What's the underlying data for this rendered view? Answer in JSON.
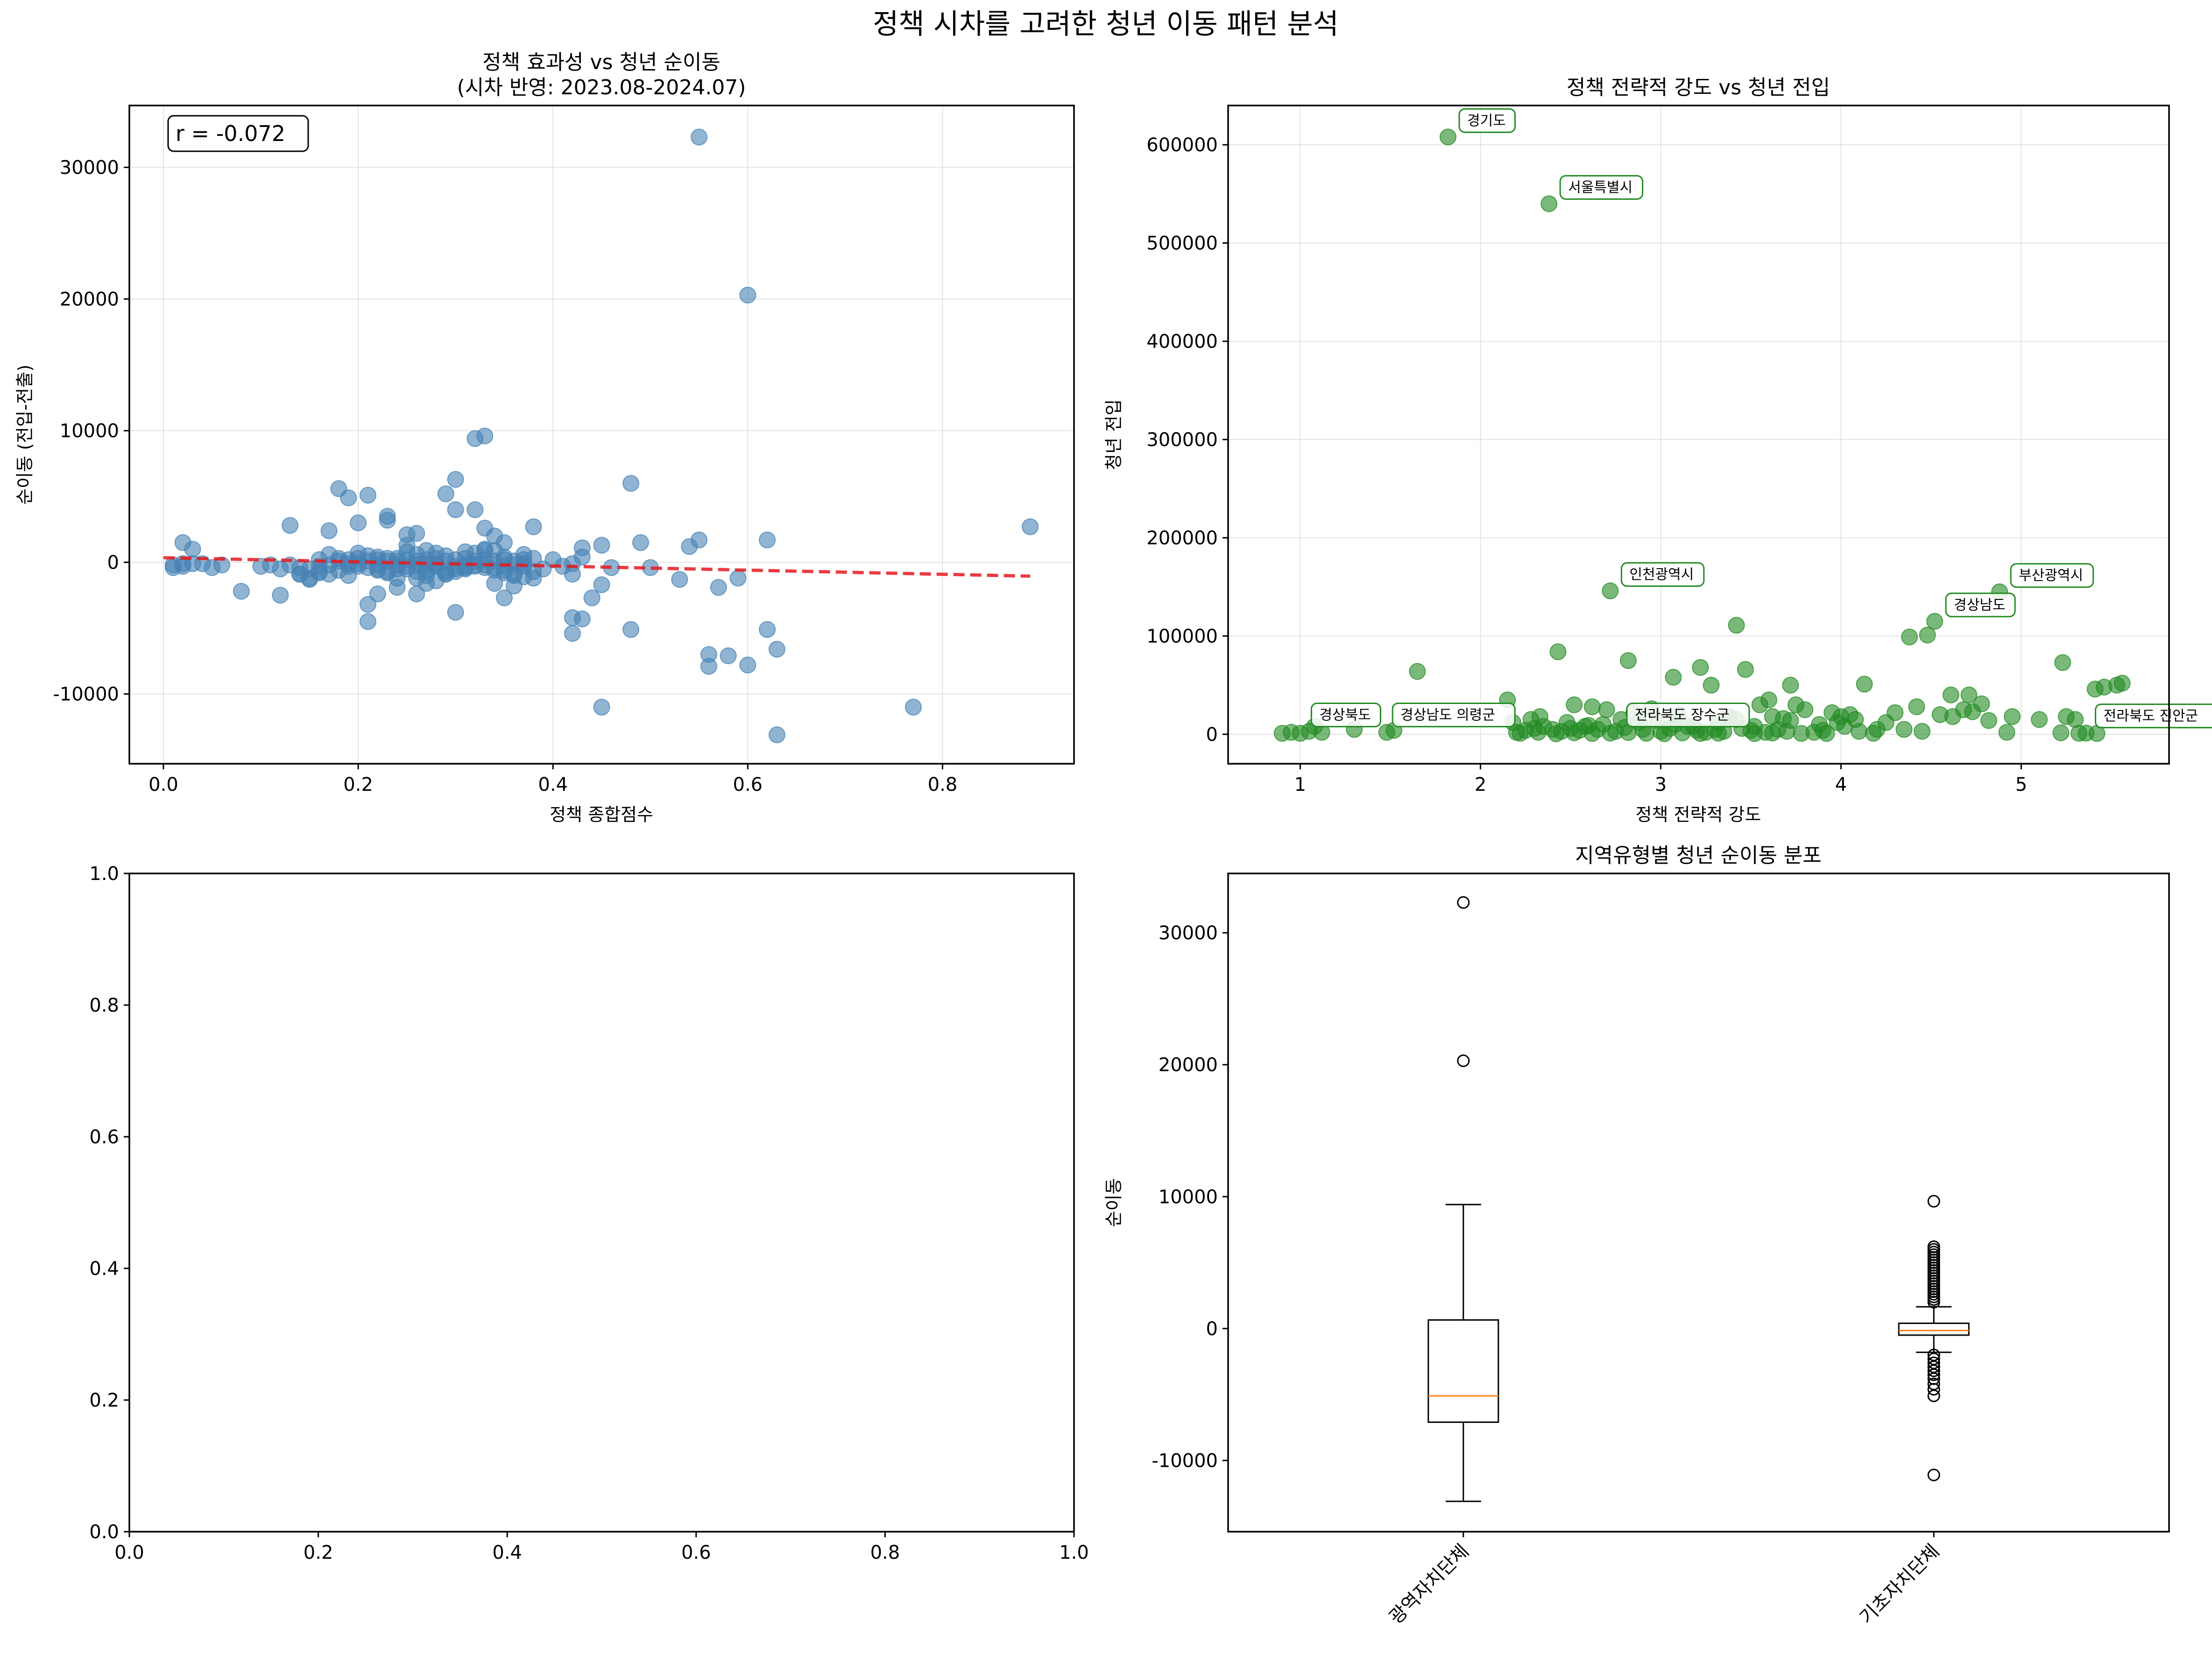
{
  "figure": {
    "title": "정책 시차를 고려한 청년 이동 패턴 분석"
  },
  "colors": {
    "scatter1": "#4682B4",
    "trend": "#E8191E",
    "scatter2": "#228B22",
    "annotation_edge": "#228B22",
    "median": "#FF7F0E"
  },
  "chart_data": [
    {
      "id": "ax1",
      "type": "scatter",
      "title_lines": [
        "정책 효과성 vs 청년 순이동",
        "(시차 반영: 2023.08-2024.07)"
      ],
      "xlabel": "정책 종합점수",
      "ylabel": "순이동 (전입-전출)",
      "xlim": [
        -0.035,
        0.935
      ],
      "ylim": [
        -15300,
        34700
      ],
      "xticks": [
        0.0,
        0.2,
        0.4,
        0.6,
        0.8
      ],
      "xtick_labels": [
        "0.0",
        "0.2",
        "0.4",
        "0.6",
        "0.8"
      ],
      "yticks": [
        -10000,
        0,
        10000,
        20000,
        30000
      ],
      "ytick_labels": [
        "-10000",
        "0",
        "10000",
        "20000",
        "30000"
      ],
      "grid": true,
      "annotation": "r = -0.072",
      "trend_line": {
        "x": [
          0.0,
          0.89
        ],
        "y": [
          350,
          -1050
        ]
      },
      "series": [
        {
          "x": [
            0.55,
            0.6,
            0.89,
            0.33,
            0.32,
            0.3,
            0.48,
            0.29,
            0.18,
            0.19,
            0.21,
            0.23,
            0.13,
            0.17,
            0.32,
            0.3,
            0.23,
            0.26,
            0.2,
            0.38,
            0.25,
            0.34,
            0.33,
            0.35,
            0.49,
            0.62,
            0.02,
            0.03,
            0.21,
            0.42,
            0.44,
            0.43,
            0.54,
            0.55,
            0.57,
            0.59,
            0.45,
            0.45,
            0.46,
            0.5,
            0.53,
            0.04,
            0.05,
            0.06,
            0.08,
            0.12,
            0.13,
            0.14,
            0.15,
            0.16,
            0.17,
            0.19,
            0.22,
            0.24,
            0.26,
            0.27,
            0.28,
            0.31,
            0.36,
            0.37,
            0.39,
            0.4,
            0.41,
            0.42,
            0.43,
            0.21,
            0.22,
            0.23,
            0.24,
            0.15,
            0.14,
            0.28,
            0.3,
            0.34,
            0.35,
            0.36,
            0.38,
            0.42,
            0.48,
            0.43,
            0.42,
            0.56,
            0.56,
            0.58,
            0.6,
            0.62,
            0.63,
            0.63,
            0.45,
            0.77,
            0.01,
            0.02,
            0.03,
            0.01,
            0.02,
            0.1,
            0.11,
            0.12,
            0.14,
            0.16,
            0.18,
            0.19,
            0.2,
            0.22,
            0.24,
            0.25,
            0.26,
            0.27,
            0.29,
            0.3,
            0.31,
            0.32,
            0.33,
            0.34,
            0.35,
            0.36,
            0.37,
            0.25,
            0.26,
            0.27,
            0.28,
            0.29,
            0.33,
            0.34,
            0.35,
            0.16,
            0.17,
            0.18,
            0.2,
            0.21,
            0.22,
            0.23,
            0.24,
            0.25,
            0.31,
            0.32,
            0.33,
            0.37,
            0.38,
            0.19,
            0.2,
            0.21,
            0.22,
            0.23,
            0.24,
            0.25,
            0.26,
            0.27,
            0.28,
            0.29,
            0.3,
            0.31,
            0.32,
            0.33,
            0.34,
            0.35,
            0.36,
            0.37,
            0.38,
            0.18,
            0.19,
            0.2,
            0.21,
            0.22,
            0.23,
            0.24,
            0.25,
            0.26,
            0.27,
            0.28,
            0.29,
            0.3,
            0.31,
            0.32,
            0.33,
            0.34,
            0.35,
            0.36,
            0.37,
            0.28,
            0.29,
            0.3,
            0.27,
            0.15,
            0.16,
            0.17,
            0.26,
            0.27,
            0.31,
            0.35
          ],
          "y": [
            32300,
            20300,
            2700,
            9600,
            9400,
            6300,
            6000,
            5200,
            5600,
            4900,
            5100,
            3500,
            2800,
            2400,
            4000,
            4000,
            3200,
            2200,
            3000,
            2700,
            2100,
            2000,
            2600,
            1500,
            1500,
            1700,
            1500,
            1000,
            -4500,
            -4200,
            -2700,
            1100,
            1200,
            1700,
            -1900,
            -1200,
            -11000,
            1300,
            -400,
            -400,
            -1300,
            -100,
            -400,
            -200,
            -2200,
            -2500,
            -200,
            -900,
            -1300,
            -300,
            -200,
            -1000,
            -500,
            -1900,
            -2400,
            -700,
            -200,
            -400,
            -1000,
            -300,
            -500,
            200,
            -300,
            -100,
            400,
            -3200,
            -2400,
            -700,
            -1200,
            -1200,
            -900,
            -300,
            -3800,
            -1600,
            -2700,
            -1800,
            -1200,
            -5400,
            -5100,
            -4300,
            -900,
            -7000,
            -7900,
            -7100,
            -7800,
            -5100,
            -6600,
            -13100,
            -1700,
            -11000,
            -200,
            -300,
            -100,
            -400,
            -100,
            -300,
            -200,
            -500,
            -400,
            -800,
            -600,
            -300,
            -100,
            -200,
            -500,
            -300,
            -200,
            -100,
            -700,
            -500,
            -300,
            -200,
            -400,
            -600,
            -300,
            -200,
            -100,
            800,
            600,
            900,
            700,
            500,
            1000,
            900,
            400,
            200,
            600,
            300,
            700,
            500,
            400,
            100,
            300,
            1300,
            800,
            700,
            900,
            600,
            300,
            -100,
            -300,
            -400,
            -600,
            -800,
            -200,
            -500,
            -700,
            -300,
            -100,
            -900,
            -700,
            -500,
            -300,
            -200,
            -400,
            -600,
            -900,
            -1100,
            -700,
            100,
            200,
            300,
            100,
            200,
            300,
            100,
            200,
            100,
            200,
            300,
            100,
            200,
            300,
            100,
            200,
            100,
            200,
            100,
            200,
            -1400,
            -900,
            -300,
            -1600,
            -500,
            -700,
            -900,
            -1200,
            -1000,
            -200,
            -800
          ]
        }
      ]
    },
    {
      "id": "ax2",
      "type": "scatter",
      "title_lines": [
        "정책 전략적 강도 vs 청년 전입"
      ],
      "xlabel": "정책 전략적 강도",
      "ylabel": "청년 전입",
      "xlim": [
        0.6,
        5.82
      ],
      "ylim": [
        -30000,
        640000
      ],
      "xticks": [
        1,
        2,
        3,
        4,
        5
      ],
      "xtick_labels": [
        "1",
        "2",
        "3",
        "4",
        "5"
      ],
      "yticks": [
        0,
        100000,
        200000,
        300000,
        400000,
        500000,
        600000
      ],
      "ytick_labels": [
        "0",
        "100000",
        "200000",
        "300000",
        "400000",
        "500000",
        "600000"
      ],
      "grid": true,
      "annotations": [
        {
          "text": "경기도",
          "x": 1.82,
          "y": 608000
        },
        {
          "text": "서울특별시",
          "x": 2.38,
          "y": 540000
        },
        {
          "text": "인천광역시",
          "x": 2.72,
          "y": 146000
        },
        {
          "text": "부산광역시",
          "x": 4.88,
          "y": 145000
        },
        {
          "text": "경상남도",
          "x": 4.52,
          "y": 115000
        },
        {
          "text": "경상북도",
          "x": 1.0,
          "y": 3000
        },
        {
          "text": "경상남도 의령군",
          "x": 1.45,
          "y": 3000
        },
        {
          "text": "전라북도 장수군",
          "x": 2.75,
          "y": 3000
        },
        {
          "text": "전라북도 진안군",
          "x": 5.35,
          "y": 2000
        }
      ],
      "series": [
        {
          "x": [
            1.82,
            2.38,
            2.72,
            4.88,
            4.52,
            4.48,
            4.38,
            2.43,
            3.42,
            2.82,
            3.22,
            3.47,
            1.65,
            4.13,
            4.61,
            4.71,
            3.72,
            3.28,
            3.07,
            5.23,
            5.41,
            5.46,
            5.56,
            5.53,
            4.78,
            4.68,
            4.73,
            2.95,
            2.15,
            2.52,
            2.62,
            2.7,
            2.85,
            3.1,
            3.38,
            3.55,
            3.6,
            3.75,
            3.8,
            3.95,
            4.0,
            4.05,
            4.3,
            4.42,
            4.55,
            4.62,
            4.82,
            4.95,
            5.1,
            5.25,
            5.3,
            0.9,
            0.95,
            1.0,
            1.05,
            1.08,
            1.12,
            1.3,
            1.48,
            1.52,
            2.2,
            2.25,
            2.3,
            2.35,
            2.4,
            2.45,
            2.5,
            2.55,
            2.6,
            2.65,
            2.75,
            2.8,
            2.9,
            3.0,
            3.05,
            3.15,
            3.2,
            3.25,
            3.3,
            3.35,
            3.45,
            3.5,
            3.52,
            3.58,
            3.65,
            3.7,
            3.85,
            3.9,
            4.1,
            4.2,
            4.25,
            2.18,
            2.28,
            2.33,
            2.48,
            2.58,
            2.68,
            2.78,
            2.88,
            2.98,
            3.08,
            3.18,
            3.32,
            3.42,
            3.62,
            3.68,
            3.72,
            3.88,
            3.98,
            4.02,
            4.08,
            2.22,
            2.32,
            2.42,
            2.52,
            2.62,
            2.72,
            2.82,
            2.92,
            3.02,
            3.12,
            3.22,
            3.32,
            3.52,
            3.62,
            3.78,
            3.92,
            4.18,
            4.35,
            4.45,
            4.92,
            5.22,
            5.32,
            5.36,
            5.42
          ],
          "y": [
            608000,
            540000,
            146000,
            145000,
            115000,
            101000,
            99000,
            84000,
            111000,
            75000,
            68000,
            66000,
            64000,
            51000,
            40000,
            40000,
            50000,
            50000,
            58000,
            73000,
            46000,
            48000,
            52000,
            50000,
            31000,
            25000,
            23000,
            26000,
            35000,
            30000,
            28000,
            25000,
            22000,
            20000,
            18000,
            30000,
            35000,
            30000,
            25000,
            22000,
            18000,
            20000,
            22000,
            28000,
            20000,
            18000,
            14000,
            18000,
            15000,
            18000,
            15000,
            1000,
            2000,
            1000,
            3000,
            8000,
            2000,
            5000,
            2000,
            4000,
            2000,
            4000,
            6000,
            8000,
            5000,
            3000,
            6000,
            4000,
            9000,
            5000,
            3000,
            7000,
            5000,
            3000,
            6000,
            8000,
            4000,
            2000,
            5000,
            3000,
            6000,
            4000,
            8000,
            2000,
            5000,
            3000,
            2000,
            4000,
            3000,
            5000,
            12000,
            12000,
            15000,
            18000,
            12000,
            8000,
            10000,
            15000,
            12000,
            14000,
            10000,
            8000,
            12000,
            15000,
            18000,
            16000,
            14000,
            10000,
            12000,
            8000,
            15000,
            1000,
            2000,
            500,
            1500,
            800,
            1200,
            1800,
            1000,
            600,
            1400,
            900,
            1100,
            700,
            1300,
            900,
            800,
            1000,
            5000,
            3000,
            2000,
            1500,
            1000,
            1200,
            800
          ]
        }
      ]
    },
    {
      "id": "ax3",
      "type": "empty",
      "xlim": [
        0,
        1
      ],
      "ylim": [
        0,
        1
      ],
      "xticks": [
        0,
        0.2,
        0.4,
        0.6,
        0.8,
        1.0
      ],
      "xtick_labels": [
        "0.0",
        "0.2",
        "0.4",
        "0.6",
        "0.8",
        "1.0"
      ],
      "yticks": [
        0,
        0.2,
        0.4,
        0.6,
        0.8,
        1.0
      ],
      "ytick_labels": [
        "0.0",
        "0.2",
        "0.4",
        "0.6",
        "0.8",
        "1.0"
      ]
    },
    {
      "id": "ax4",
      "type": "box",
      "title_lines": [
        "지역유형별 청년 순이동 분포"
      ],
      "ylabel": "순이동",
      "categories": [
        "광역자치단체",
        "기초자치단체"
      ],
      "ylim": [
        -15400,
        34500
      ],
      "yticks": [
        -10000,
        0,
        10000,
        20000,
        30000
      ],
      "ytick_labels": [
        "-10000",
        "0",
        "10000",
        "20000",
        "30000"
      ],
      "boxes": [
        {
          "whislo": -13100,
          "q1": -7100,
          "med": -5100,
          "q3": 650,
          "whishi": 9400,
          "fliers": [
            20300,
            32300
          ]
        },
        {
          "whislo": -1800,
          "q1": -500,
          "med": -150,
          "q3": 400,
          "whishi": 1650,
          "fliers": [
            9650,
            6200,
            6000,
            5800,
            5600,
            5400,
            5200,
            5000,
            4800,
            4600,
            4400,
            4200,
            4000,
            3800,
            3600,
            3400,
            3200,
            3000,
            2800,
            2600,
            2400,
            2200,
            2000,
            -2000,
            -2300,
            -2600,
            -2900,
            -3200,
            -3500,
            -3800,
            -4200,
            -4600,
            -5100,
            -11100
          ]
        }
      ]
    }
  ]
}
